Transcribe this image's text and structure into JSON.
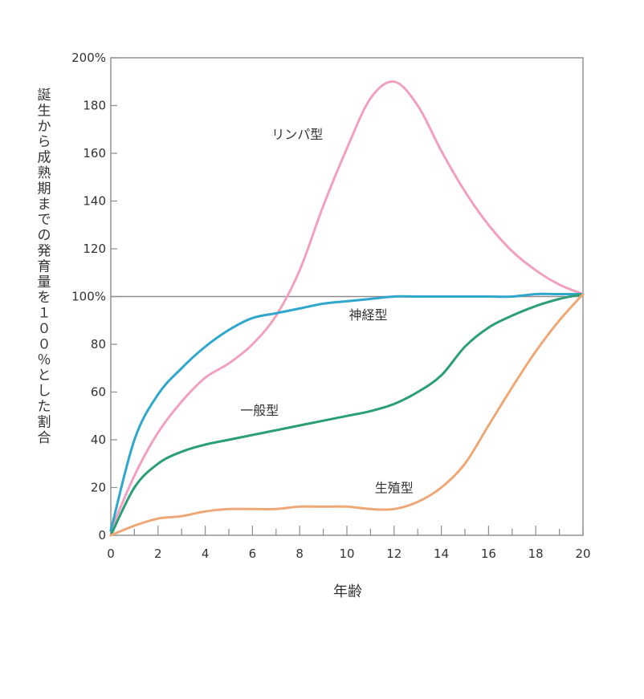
{
  "chart_data": {
    "type": "line",
    "xlabel": "年齢",
    "ylabel": "誕生から成熟期までの発育量を１００％とした割合",
    "xlim": [
      0,
      20
    ],
    "ylim": [
      0,
      200
    ],
    "x_ticks": [
      0,
      2,
      4,
      6,
      8,
      10,
      12,
      14,
      16,
      18,
      20
    ],
    "x_tick_labels": [
      "0",
      "2",
      "4",
      "6",
      "8",
      "10",
      "12",
      "14",
      "16",
      "18",
      "20"
    ],
    "y_ticks": [
      0,
      20,
      40,
      60,
      80,
      100,
      120,
      140,
      160,
      180,
      200
    ],
    "y_tick_labels": [
      "0",
      "20",
      "40",
      "60",
      "80",
      "100%",
      "120",
      "140",
      "160",
      "180",
      "200%"
    ],
    "reference_line": 100,
    "x": [
      0,
      1,
      2,
      3,
      4,
      5,
      6,
      7,
      8,
      9,
      10,
      11,
      12,
      13,
      14,
      15,
      16,
      17,
      18,
      19,
      20
    ],
    "series": [
      {
        "name": "リンパ型",
        "color": "#f2a0c0",
        "values": [
          2,
          25,
          43,
          56,
          66,
          72,
          80,
          92,
          111,
          138,
          162,
          183,
          190,
          180,
          161,
          144,
          130,
          119,
          111,
          105,
          101
        ]
      },
      {
        "name": "神経型",
        "color": "#2fa7cc",
        "values": [
          2,
          40,
          59,
          70,
          79,
          86,
          91,
          93,
          95,
          97,
          98,
          99,
          100,
          100,
          100,
          100,
          100,
          100,
          101,
          101,
          101
        ]
      },
      {
        "name": "一般型",
        "color": "#2b9e74",
        "values": [
          0,
          20,
          30,
          35,
          38,
          40,
          42,
          44,
          46,
          48,
          50,
          52,
          55,
          60,
          67,
          79,
          87,
          92,
          96,
          99,
          101
        ]
      },
      {
        "name": "生殖型",
        "color": "#eea878",
        "values": [
          0,
          4,
          7,
          8,
          10,
          11,
          11,
          11,
          12,
          12,
          12,
          11,
          11,
          14,
          20,
          30,
          46,
          62,
          77,
          90,
          101
        ]
      }
    ]
  }
}
